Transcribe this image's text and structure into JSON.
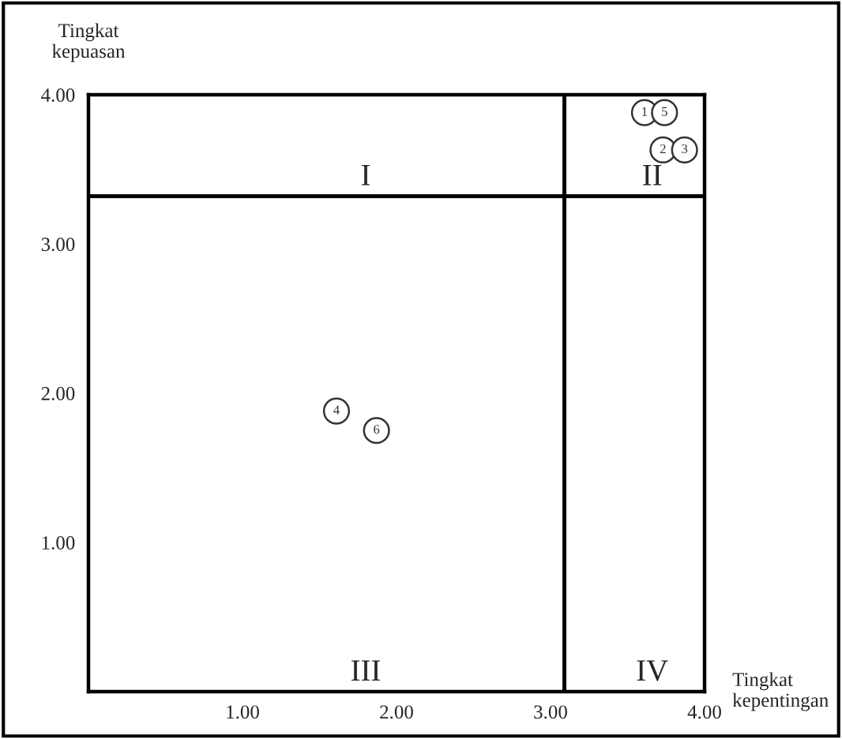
{
  "chart_data": {
    "type": "scatter",
    "xlabel": "Tingkat\nkepentingan",
    "ylabel": "Tingkat\nkepuasan",
    "x": [
      3.61,
      3.73,
      3.87,
      1.61,
      3.74,
      1.87
    ],
    "series": [
      {
        "color": "#333333",
        "values": [
          3.88,
          3.63,
          3.63,
          1.88,
          3.88,
          1.75
        ]
      }
    ],
    "value_labels": [
      "1",
      "2",
      "3",
      "4",
      "5",
      "6"
    ],
    "marker": "circle",
    "xlim": [
      0,
      4
    ],
    "ylim": [
      0,
      4
    ],
    "xticks": [
      {
        "value": 1,
        "label": "1.00"
      },
      {
        "value": 2,
        "label": "2.00"
      },
      {
        "value": 3,
        "label": "3.00"
      },
      {
        "value": 4,
        "label": "4.00"
      }
    ],
    "yticks": [
      {
        "value": 1,
        "label": "1.00"
      },
      {
        "value": 2,
        "label": "2.00"
      },
      {
        "value": 3,
        "label": "3.00"
      },
      {
        "value": 4,
        "label": "4.00"
      }
    ],
    "ref_lines": [
      {
        "axis": "x",
        "value": 3.09,
        "color": "#000000",
        "line_style": "solid"
      },
      {
        "axis": "y",
        "value": 3.32,
        "color": "#000000",
        "line_style": "solid"
      }
    ],
    "annotations": [
      "I",
      "II",
      "III",
      "IV"
    ],
    "grid": false,
    "legend": false
  }
}
